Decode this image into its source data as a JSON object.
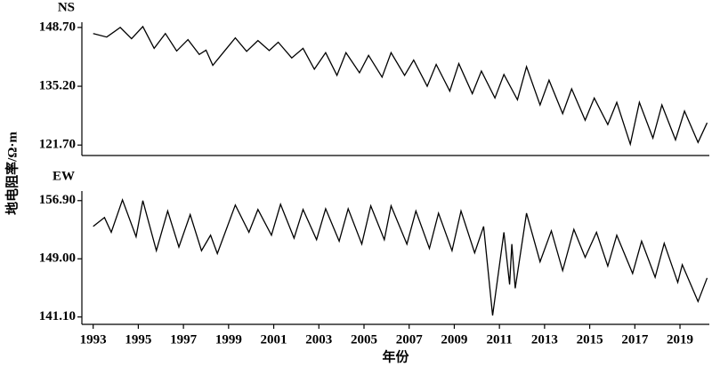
{
  "chart_data": [
    {
      "type": "line",
      "title": "NS",
      "ylabel": "地电阻率/Ω·m",
      "x": [
        1993.0,
        1993.6,
        1994.2,
        1994.7,
        1995.2,
        1995.7,
        1996.2,
        1996.7,
        1997.2,
        1997.7,
        1998.0,
        1998.3,
        1999.3,
        1999.8,
        2000.3,
        2000.8,
        2001.2,
        2001.8,
        2002.3,
        2002.8,
        2003.3,
        2003.8,
        2004.2,
        2004.8,
        2005.2,
        2005.8,
        2006.2,
        2006.8,
        2007.2,
        2007.8,
        2008.2,
        2008.8,
        2009.2,
        2009.8,
        2010.2,
        2010.8,
        2011.2,
        2011.8,
        2012.2,
        2012.8,
        2013.2,
        2013.8,
        2014.2,
        2014.8,
        2015.2,
        2015.8,
        2016.2,
        2016.8,
        2017.2,
        2017.8,
        2018.2,
        2018.8,
        2019.2,
        2019.8,
        2020.2
      ],
      "values": [
        147.3,
        146.5,
        148.7,
        146.1,
        148.9,
        143.9,
        147.3,
        143.3,
        145.9,
        142.5,
        143.5,
        140.0,
        146.3,
        143.2,
        145.7,
        143.4,
        145.3,
        141.7,
        143.9,
        139.1,
        142.9,
        137.7,
        142.9,
        138.3,
        142.3,
        137.3,
        142.9,
        137.7,
        141.2,
        135.2,
        140.2,
        134.1,
        140.4,
        133.5,
        138.7,
        132.5,
        137.9,
        132.1,
        139.7,
        130.9,
        136.6,
        128.9,
        134.6,
        127.4,
        132.5,
        126.4,
        131.5,
        121.9,
        131.5,
        123.3,
        130.9,
        122.9,
        129.5,
        122.3,
        126.8
      ],
      "color": "#000000",
      "xlim": [
        1992.5,
        2020.3
      ],
      "ylim": [
        119.3,
        149.9
      ],
      "yticks": [
        {
          "value": 121.7,
          "label": "121.70"
        },
        {
          "value": 135.2,
          "label": "135.20"
        },
        {
          "value": 148.7,
          "label": "148.70"
        }
      ]
    },
    {
      "type": "line",
      "title": "EW",
      "xlabel": "年份",
      "x": [
        1993.0,
        1993.5,
        1993.8,
        1994.3,
        1994.9,
        1995.2,
        1995.8,
        1996.3,
        1996.8,
        1997.3,
        1997.8,
        1998.2,
        1998.5,
        1999.3,
        1999.9,
        2000.3,
        2000.9,
        2001.3,
        2001.9,
        2002.3,
        2002.9,
        2003.3,
        2003.9,
        2004.3,
        2004.9,
        2005.3,
        2005.9,
        2006.2,
        2006.9,
        2007.3,
        2007.9,
        2008.3,
        2008.9,
        2009.3,
        2009.9,
        2010.3,
        2010.7,
        2011.2,
        2011.45,
        2011.55,
        2011.7,
        2012.2,
        2012.8,
        2013.3,
        2013.8,
        2014.3,
        2014.8,
        2015.3,
        2015.8,
        2016.2,
        2016.9,
        2017.3,
        2017.9,
        2018.3,
        2018.9,
        2019.1,
        2019.8,
        2020.2
      ],
      "values": [
        153.4,
        154.6,
        152.6,
        157.0,
        152.0,
        156.9,
        150.1,
        155.5,
        150.6,
        155.0,
        150.1,
        152.2,
        149.7,
        156.3,
        152.6,
        155.7,
        152.2,
        156.4,
        151.8,
        155.7,
        151.6,
        155.8,
        151.4,
        155.8,
        151.0,
        156.2,
        151.6,
        156.2,
        151.0,
        155.5,
        150.4,
        155.2,
        150.1,
        155.5,
        149.8,
        153.4,
        141.3,
        152.6,
        145.5,
        151.0,
        145.0,
        155.2,
        148.6,
        152.8,
        147.4,
        153.0,
        149.2,
        152.6,
        148.0,
        152.2,
        147.0,
        151.4,
        146.5,
        151.1,
        145.8,
        148.2,
        143.2,
        146.4
      ],
      "color": "#000000",
      "xlim": [
        1992.5,
        2020.3
      ],
      "ylim": [
        140.1,
        158.2
      ],
      "xticks": [
        1993,
        1995,
        1997,
        1999,
        2001,
        2003,
        2005,
        2007,
        2009,
        2011,
        2013,
        2015,
        2017,
        2019
      ],
      "yticks": [
        {
          "value": 141.1,
          "label": "141.10"
        },
        {
          "value": 149.0,
          "label": "149.00"
        },
        {
          "value": 156.9,
          "label": "156.90"
        }
      ]
    }
  ]
}
